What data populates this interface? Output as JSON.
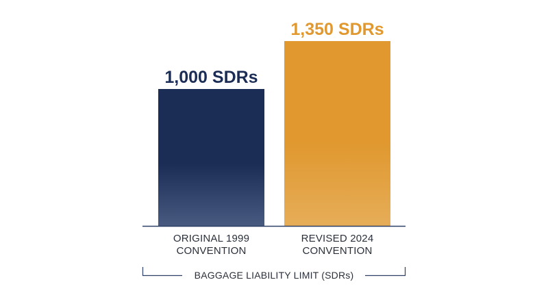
{
  "chart_data": {
    "type": "bar",
    "categories": [
      [
        "ORIGINAL 1999",
        "CONVENTION"
      ],
      [
        "REVISED 2024",
        "CONVENTION"
      ]
    ],
    "values": [
      1000,
      1350
    ],
    "value_labels": [
      "1,000 SDRs",
      "1,350 SDRs"
    ],
    "xlabel": "BAGGAGE LIABILITY LIMIT (SDRs)",
    "ylabel": "",
    "ylim": [
      0,
      1485
    ],
    "grid": false,
    "legend": "none"
  },
  "colors": {
    "bar_1_top": "#1b2d55",
    "bar_1_bottom": "#485a80",
    "bar_2_top": "#e0982f",
    "bar_2_bottom": "#e6ad58",
    "label_1": "#1b2d55",
    "label_2": "#e0982f",
    "axis": "#2c3f66"
  }
}
